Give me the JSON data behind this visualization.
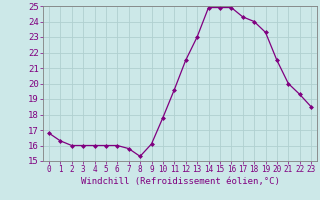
{
  "x": [
    0,
    1,
    2,
    3,
    4,
    5,
    6,
    7,
    8,
    9,
    10,
    11,
    12,
    13,
    14,
    15,
    16,
    17,
    18,
    19,
    20,
    21,
    22,
    23
  ],
  "y": [
    16.8,
    16.3,
    16.0,
    16.0,
    16.0,
    16.0,
    16.0,
    15.8,
    15.3,
    16.1,
    17.8,
    19.6,
    21.5,
    23.0,
    24.9,
    24.9,
    24.9,
    24.3,
    24.0,
    23.3,
    21.5,
    20.0,
    19.3,
    18.5
  ],
  "xlabel": "Windchill (Refroidissement éolien,°C)",
  "ylim": [
    15,
    25
  ],
  "yticks": [
    15,
    16,
    17,
    18,
    19,
    20,
    21,
    22,
    23,
    24,
    25
  ],
  "xticks": [
    0,
    1,
    2,
    3,
    4,
    5,
    6,
    7,
    8,
    9,
    10,
    11,
    12,
    13,
    14,
    15,
    16,
    17,
    18,
    19,
    20,
    21,
    22,
    23
  ],
  "line_color": "#800080",
  "marker": "D",
  "marker_size": 2.0,
  "bg_color": "#cce8e8",
  "grid_color": "#b0d0d0",
  "label_color": "#800080",
  "spine_color": "#808080"
}
